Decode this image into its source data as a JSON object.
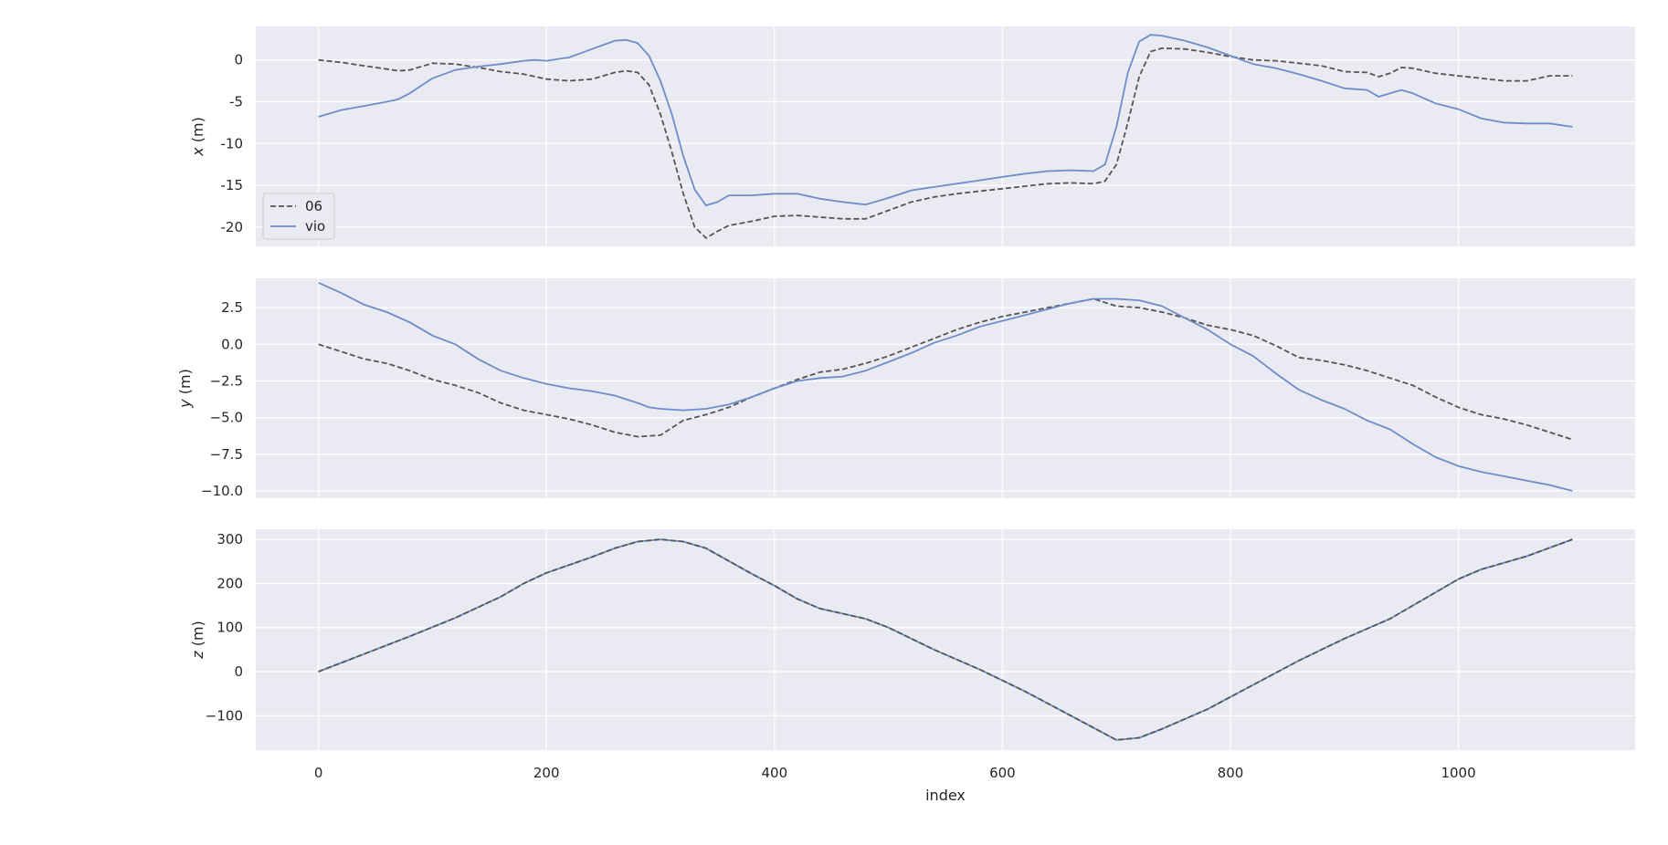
{
  "chart_data": {
    "type": "line",
    "xlabel": "index",
    "xlim": [
      -55,
      1155
    ],
    "xticks": [
      0,
      200,
      400,
      600,
      800,
      1000
    ],
    "colors": {
      "background": "#eaeaf2",
      "grid": "#ffffff",
      "gt": "#555555",
      "vio": "#6e8cc8"
    },
    "legend": {
      "placement": "lower-left",
      "entries": [
        "06",
        "vio"
      ]
    },
    "panels": [
      {
        "ylabel": "x (m)",
        "ylim": [
          -22.3,
          4.0
        ],
        "yticks": [
          0,
          -5,
          -10,
          -15,
          -20
        ],
        "series": [
          {
            "name": "06",
            "style": "dashed",
            "x": [
              0,
              20,
              40,
              60,
              70,
              80,
              100,
              120,
              140,
              160,
              180,
              200,
              220,
              240,
              260,
              270,
              280,
              290,
              300,
              310,
              320,
              330,
              340,
              350,
              360,
              380,
              400,
              420,
              440,
              460,
              480,
              500,
              520,
              540,
              560,
              580,
              600,
              620,
              640,
              660,
              680,
              690,
              700,
              710,
              720,
              730,
              740,
              760,
              780,
              800,
              820,
              840,
              860,
              880,
              900,
              920,
              930,
              940,
              950,
              960,
              980,
              1000,
              1020,
              1040,
              1060,
              1080,
              1100
            ],
            "y": [
              0,
              -0.3,
              -0.7,
              -1.1,
              -1.3,
              -1.2,
              -0.4,
              -0.5,
              -0.9,
              -1.4,
              -1.7,
              -2.3,
              -2.5,
              -2.3,
              -1.5,
              -1.3,
              -1.5,
              -3.0,
              -6.5,
              -11.0,
              -16.0,
              -20.0,
              -21.3,
              -20.5,
              -19.8,
              -19.3,
              -18.7,
              -18.6,
              -18.8,
              -19.0,
              -19.0,
              -18.0,
              -17.0,
              -16.4,
              -16.0,
              -15.7,
              -15.4,
              -15.1,
              -14.8,
              -14.7,
              -14.8,
              -14.5,
              -12.5,
              -7.5,
              -2.0,
              1.0,
              1.4,
              1.3,
              0.9,
              0.4,
              0,
              -0.1,
              -0.4,
              -0.7,
              -1.4,
              -1.5,
              -2.0,
              -1.6,
              -0.9,
              -1.0,
              -1.6,
              -1.9,
              -2.2,
              -2.5,
              -2.5,
              -1.9,
              -1.9
            ]
          },
          {
            "name": "vio",
            "style": "solid",
            "x": [
              0,
              20,
              40,
              60,
              70,
              80,
              100,
              120,
              140,
              160,
              180,
              190,
              200,
              220,
              240,
              260,
              270,
              280,
              290,
              300,
              310,
              320,
              330,
              340,
              350,
              360,
              380,
              400,
              420,
              440,
              460,
              480,
              500,
              520,
              540,
              560,
              580,
              600,
              620,
              640,
              660,
              680,
              690,
              700,
              710,
              720,
              730,
              740,
              760,
              780,
              800,
              820,
              840,
              860,
              880,
              900,
              920,
              930,
              940,
              950,
              960,
              980,
              1000,
              1020,
              1040,
              1060,
              1080,
              1100
            ],
            "y": [
              -6.8,
              -6.0,
              -5.5,
              -5.0,
              -4.7,
              -4.0,
              -2.2,
              -1.2,
              -0.8,
              -0.5,
              -0.1,
              0,
              -0.1,
              0.3,
              1.3,
              2.3,
              2.4,
              2.0,
              0.5,
              -2.5,
              -6.5,
              -11.5,
              -15.5,
              -17.4,
              -17.0,
              -16.2,
              -16.2,
              -16.0,
              -16.0,
              -16.6,
              -17.0,
              -17.3,
              -16.5,
              -15.6,
              -15.2,
              -14.8,
              -14.4,
              -14.0,
              -13.6,
              -13.3,
              -13.2,
              -13.3,
              -12.5,
              -8.0,
              -1.5,
              2.2,
              3.0,
              2.9,
              2.3,
              1.5,
              0.5,
              -0.5,
              -1.0,
              -1.7,
              -2.5,
              -3.4,
              -3.6,
              -4.4,
              -4.0,
              -3.6,
              -4.0,
              -5.2,
              -5.9,
              -7.0,
              -7.5,
              -7.6,
              -7.6,
              -8.0
            ]
          }
        ]
      },
      {
        "ylabel": "y (m)",
        "ylim": [
          -10.5,
          4.5
        ],
        "yticks": [
          2.5,
          0.0,
          -2.5,
          -5.0,
          -7.5,
          -10.0
        ],
        "yticklabels": [
          "2.5",
          "0.0",
          "−2.5",
          "−5.0",
          "−7.5",
          "−10.0"
        ],
        "series": [
          {
            "name": "06",
            "style": "dashed",
            "x": [
              0,
              20,
              40,
              60,
              80,
              100,
              120,
              140,
              160,
              180,
              200,
              220,
              240,
              260,
              280,
              300,
              320,
              340,
              360,
              380,
              400,
              420,
              440,
              460,
              480,
              500,
              520,
              540,
              560,
              580,
              600,
              620,
              640,
              660,
              680,
              700,
              720,
              740,
              760,
              780,
              800,
              820,
              840,
              860,
              880,
              900,
              920,
              940,
              960,
              980,
              1000,
              1020,
              1040,
              1060,
              1080,
              1100
            ],
            "y": [
              0,
              -0.5,
              -1.0,
              -1.3,
              -1.8,
              -2.4,
              -2.8,
              -3.3,
              -4.0,
              -4.5,
              -4.8,
              -5.1,
              -5.5,
              -6.0,
              -6.3,
              -6.2,
              -5.2,
              -4.8,
              -4.3,
              -3.6,
              -3.0,
              -2.4,
              -1.9,
              -1.7,
              -1.3,
              -0.8,
              -0.2,
              0.4,
              1.0,
              1.5,
              1.9,
              2.2,
              2.5,
              2.8,
              3.1,
              2.6,
              2.5,
              2.2,
              1.8,
              1.3,
              1.0,
              0.6,
              -0.1,
              -0.9,
              -1.1,
              -1.4,
              -1.8,
              -2.3,
              -2.8,
              -3.6,
              -4.3,
              -4.8,
              -5.1,
              -5.5,
              -6.0,
              -6.5
            ]
          },
          {
            "name": "vio",
            "style": "solid",
            "x": [
              0,
              20,
              40,
              60,
              80,
              100,
              120,
              140,
              160,
              180,
              200,
              220,
              240,
              260,
              280,
              290,
              300,
              320,
              340,
              360,
              380,
              400,
              420,
              440,
              460,
              480,
              500,
              520,
              540,
              560,
              580,
              600,
              620,
              640,
              660,
              680,
              700,
              720,
              740,
              760,
              780,
              800,
              820,
              840,
              860,
              880,
              900,
              920,
              940,
              960,
              980,
              1000,
              1020,
              1040,
              1060,
              1080,
              1100
            ],
            "y": [
              4.2,
              3.5,
              2.7,
              2.2,
              1.5,
              0.6,
              0,
              -1.0,
              -1.8,
              -2.3,
              -2.7,
              -3.0,
              -3.2,
              -3.5,
              -4.0,
              -4.3,
              -4.4,
              -4.5,
              -4.4,
              -4.1,
              -3.6,
              -3.0,
              -2.5,
              -2.3,
              -2.2,
              -1.8,
              -1.2,
              -0.6,
              0.1,
              0.6,
              1.2,
              1.6,
              2.0,
              2.4,
              2.8,
              3.1,
              3.1,
              3.0,
              2.6,
              1.8,
              1.0,
              0,
              -0.8,
              -2.0,
              -3.1,
              -3.8,
              -4.4,
              -5.2,
              -5.8,
              -6.8,
              -7.7,
              -8.3,
              -8.7,
              -9.0,
              -9.3,
              -9.6,
              -10.0
            ]
          }
        ]
      },
      {
        "ylabel": "z (m)",
        "ylim": [
          -178,
          323
        ],
        "yticks": [
          300,
          200,
          100,
          0,
          -100
        ],
        "yticklabels": [
          "300",
          "200",
          "100",
          "0",
          "−100"
        ],
        "series": [
          {
            "name": "06",
            "style": "dashed",
            "x": [
              0,
              40,
              80,
              120,
              160,
              180,
              200,
              240,
              260,
              280,
              300,
              320,
              340,
              380,
              400,
              420,
              440,
              480,
              500,
              540,
              580,
              620,
              660,
              700,
              720,
              740,
              780,
              820,
              860,
              900,
              940,
              980,
              1000,
              1020,
              1060,
              1100
            ],
            "y": [
              0,
              40,
              80,
              122,
              170,
              200,
              224,
              260,
              280,
              295,
              300,
              295,
              280,
              222,
              195,
              165,
              143,
              120,
              100,
              50,
              5,
              -45,
              -100,
              -155,
              -150,
              -130,
              -85,
              -30,
              25,
              75,
              120,
              180,
              210,
              232,
              262,
              300
            ]
          },
          {
            "name": "vio",
            "style": "solid",
            "x": [
              0,
              40,
              80,
              120,
              160,
              180,
              200,
              240,
              260,
              280,
              300,
              320,
              340,
              380,
              400,
              420,
              440,
              480,
              500,
              540,
              580,
              620,
              660,
              700,
              720,
              740,
              780,
              820,
              860,
              900,
              940,
              980,
              1000,
              1020,
              1060,
              1100
            ],
            "y": [
              0,
              40,
              80,
              122,
              170,
              200,
              224,
              260,
              280,
              295,
              300,
              295,
              280,
              222,
              195,
              165,
              143,
              120,
              100,
              50,
              5,
              -45,
              -100,
              -155,
              -150,
              -130,
              -85,
              -30,
              25,
              75,
              120,
              180,
              210,
              232,
              262,
              300
            ]
          }
        ]
      }
    ]
  }
}
